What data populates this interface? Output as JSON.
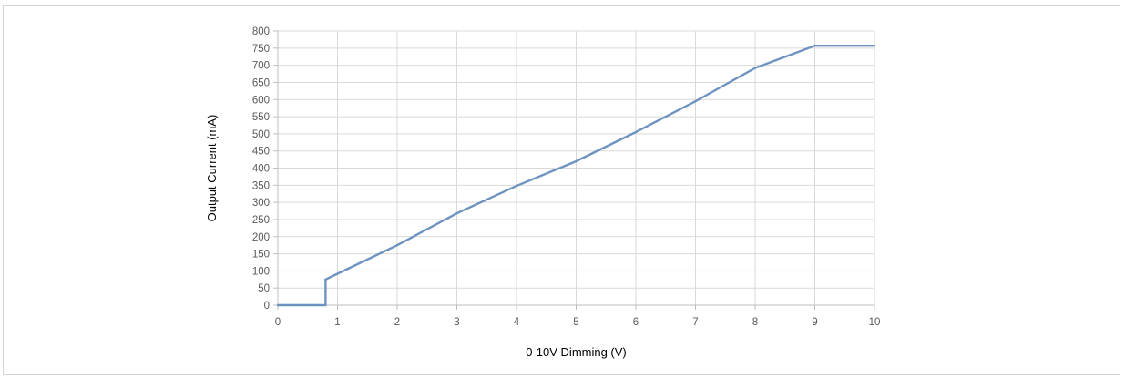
{
  "chart_data": {
    "type": "line",
    "xlabel": "0-10V Dimming (V)",
    "ylabel": "Output Current (mA)",
    "xlim": [
      0,
      10
    ],
    "ylim": [
      0,
      800
    ],
    "x_ticks": [
      0,
      1,
      2,
      3,
      4,
      5,
      6,
      7,
      8,
      9,
      10
    ],
    "y_ticks": [
      0,
      50,
      100,
      150,
      200,
      250,
      300,
      350,
      400,
      450,
      500,
      550,
      600,
      650,
      700,
      750,
      800
    ],
    "x_tick_labels": [
      "0",
      "1",
      "2",
      "3",
      "4",
      "5",
      "6",
      "7",
      "8",
      "9",
      "10"
    ],
    "y_tick_labels": [
      "0",
      "50",
      "100",
      "150",
      "200",
      "250",
      "300",
      "350",
      "400",
      "450",
      "500",
      "550",
      "600",
      "650",
      "700",
      "750",
      "800"
    ],
    "grid": true,
    "series": [
      {
        "x": [
          0,
          0.8,
          0.8,
          2,
          3,
          4,
          5,
          6,
          7,
          8,
          9,
          10
        ],
        "y": [
          0,
          0,
          75,
          175,
          268,
          348,
          420,
          505,
          595,
          692,
          757,
          757
        ],
        "color": "#6f93c0"
      }
    ]
  }
}
